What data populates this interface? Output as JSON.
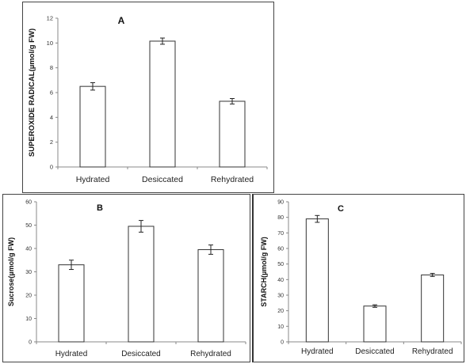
{
  "chart_data": [
    {
      "panel_label": "A",
      "type": "bar",
      "categories": [
        "Hydrated",
        "Desiccated",
        "Rehydrated"
      ],
      "values": [
        6.5,
        10.15,
        5.3
      ],
      "errors": [
        0.3,
        0.25,
        0.22
      ],
      "ylabel": "SUPEROXIDE RADICAL(µmol/g FW)",
      "xlabel": "",
      "ylim": [
        0,
        12
      ],
      "yticks": [
        0,
        2,
        4,
        6,
        8,
        10,
        12
      ],
      "grid": false,
      "bar_color": "#ffffff",
      "edge_color": "#333333"
    },
    {
      "panel_label": "B",
      "type": "bar",
      "categories": [
        "Hydrated",
        "Desiccated",
        "Rehydrated"
      ],
      "values": [
        33,
        49.5,
        39.5
      ],
      "errors": [
        2,
        2.5,
        2
      ],
      "ylabel": "Sucrose(µmol/g FW)",
      "xlabel": "",
      "ylim": [
        0,
        60
      ],
      "yticks": [
        0,
        10,
        20,
        30,
        40,
        50,
        60
      ],
      "grid": false,
      "bar_color": "#ffffff",
      "edge_color": "#333333"
    },
    {
      "panel_label": "C",
      "type": "bar",
      "categories": [
        "Hydrated",
        "Desiccated",
        "Rehydrated"
      ],
      "values": [
        79,
        23,
        43
      ],
      "errors": [
        2.2,
        0.8,
        1
      ],
      "ylabel": "STARCH(µmol/g FW)",
      "xlabel": "",
      "ylim": [
        0,
        90
      ],
      "yticks": [
        0,
        10,
        20,
        30,
        40,
        50,
        60,
        70,
        80,
        90
      ],
      "grid": false,
      "bar_color": "#ffffff",
      "edge_color": "#333333"
    }
  ]
}
